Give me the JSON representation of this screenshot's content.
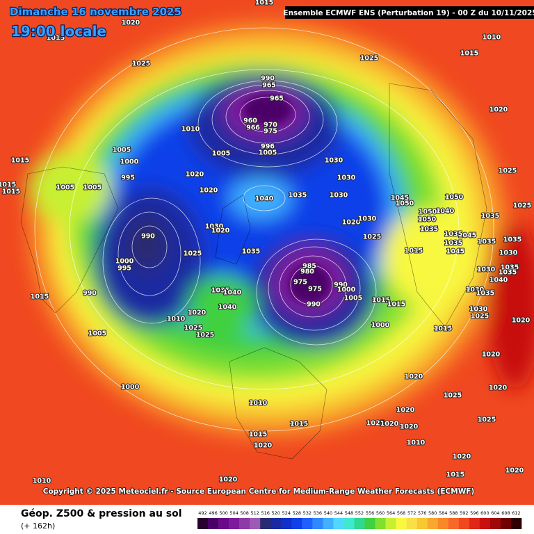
{
  "header": {
    "date": "Dimanche 16 novembre 2025",
    "time": "19:00 locale",
    "run": "Ensemble ECMWF ENS  (Perturbation 19)  -  00 Z du 10/11/2025"
  },
  "map": {
    "isobar_labels": [
      1015,
      1020,
      1015,
      1025,
      1025,
      1010,
      1015,
      1020,
      1025,
      1025,
      990,
      965,
      965,
      960,
      966,
      970,
      975,
      996,
      1005,
      1010,
      1005,
      1000,
      995,
      1015,
      1015,
      1015,
      1005,
      1005,
      1020,
      1020,
      1005,
      1030,
      1030,
      1040,
      1035,
      1030,
      1050,
      1045,
      1050,
      1020,
      1030,
      1025,
      990,
      1030,
      1020,
      1025,
      1035,
      1000,
      995,
      985,
      980,
      975,
      975,
      990,
      1000,
      990,
      1005,
      1015,
      1015,
      990,
      1015,
      1035,
      1040,
      1040,
      1020,
      1010,
      1025,
      1025,
      1005,
      1000,
      1015,
      1000,
      1010,
      1015,
      1015,
      1020,
      1020,
      1020,
      1025,
      1025,
      1020,
      1020,
      1010,
      1020,
      1015,
      1010,
      1020,
      1025,
      1020,
      1020,
      1020,
      1025,
      1030,
      1030,
      1035,
      1035,
      1035,
      1035,
      1035,
      1035,
      1030,
      1030,
      1040,
      1045,
      1035,
      1035,
      1045,
      1040,
      1050,
      1050,
      1035,
      1015,
      1020
    ]
  },
  "copyright": "Copyright © 2025 Meteociel.fr - Source European Centre for Medium-Range Weather Forecasts (ECMWF)",
  "footer": {
    "title": "Géop. Z500 & pression au sol",
    "lead": "(+ 162h)"
  },
  "scale": {
    "values": [
      492,
      496,
      500,
      504,
      508,
      512,
      516,
      520,
      524,
      528,
      532,
      536,
      540,
      544,
      548,
      552,
      556,
      560,
      564,
      568,
      572,
      576,
      580,
      584,
      588,
      592,
      596,
      600,
      604,
      608,
      612
    ],
    "colors": [
      "#2a0030",
      "#4b0068",
      "#6a0a8a",
      "#7d1a9c",
      "#8e3aa8",
      "#9c5cb4",
      "#2a2a70",
      "#1a2aa0",
      "#1030c8",
      "#1040e8",
      "#2060ff",
      "#3088ff",
      "#40b0ff",
      "#50d8ff",
      "#40e8d0",
      "#30d890",
      "#40d040",
      "#80e030",
      "#c8f030",
      "#f8f840",
      "#f8e048",
      "#f8c830",
      "#f8a830",
      "#f88828",
      "#f86828",
      "#f04820",
      "#e02818",
      "#c81010",
      "#a00808",
      "#700000",
      "#300000"
    ]
  }
}
